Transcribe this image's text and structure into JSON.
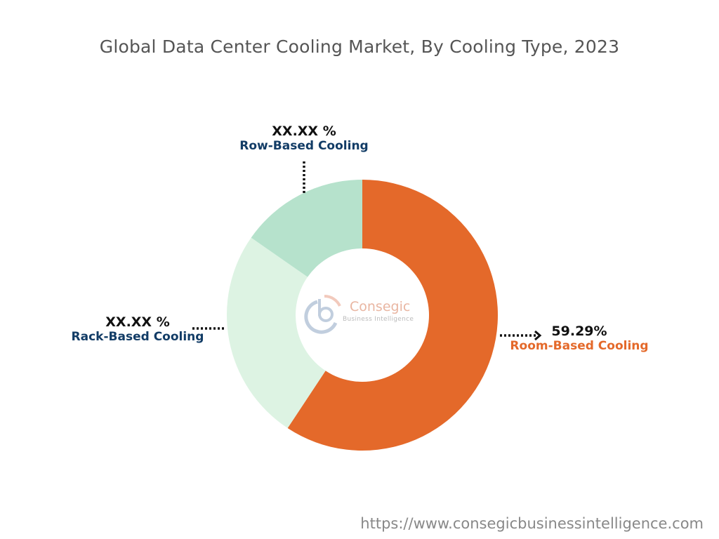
{
  "chart_data": {
    "type": "donut",
    "title": "Global Data Center Cooling Market, By Cooling Type, 2023",
    "slices": [
      {
        "name": "Room-Based Cooling",
        "value": 59.29,
        "label": "59.29%",
        "color": "#E4692A",
        "label_color": "#E4692A"
      },
      {
        "name": "Rack-Based Cooling",
        "value": 25.4,
        "label": "XX.XX %",
        "color": "#DDF3E3",
        "label_color": "#123C66"
      },
      {
        "name": "Row-Based Cooling",
        "value": 15.31,
        "label": "XX.XX %",
        "color": "#B6E2CC",
        "label_color": "#123C66"
      }
    ],
    "start": "top",
    "direction": "clockwise"
  },
  "logo": {
    "name": "Consegic",
    "tagline": "Business Intelligence"
  },
  "footer": {
    "url": "https://www.consegicbusinessintelligence.com"
  }
}
